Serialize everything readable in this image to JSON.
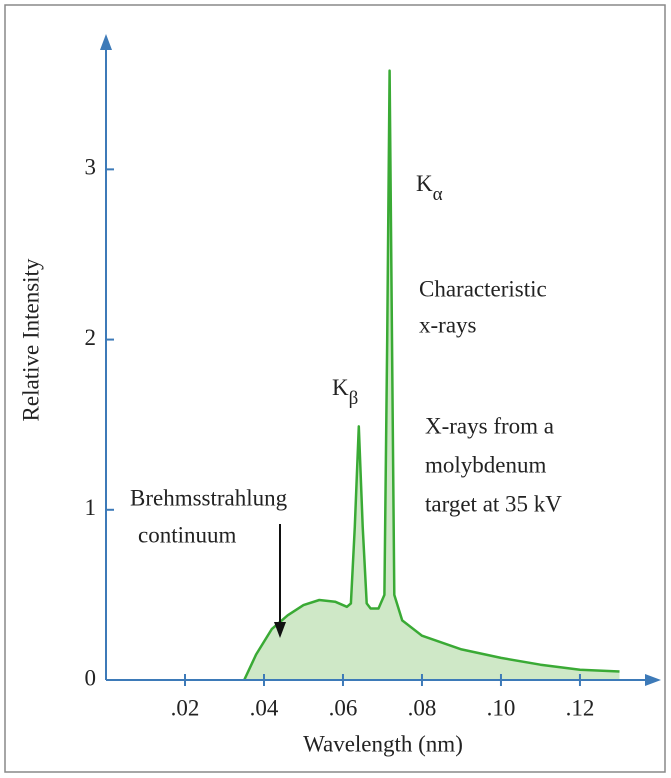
{
  "chart_data": {
    "type": "area",
    "x_label": "Wavelength (nm)",
    "y_label": "Relative Intensity",
    "x": [
      0.035,
      0.038,
      0.042,
      0.046,
      0.05,
      0.054,
      0.058,
      0.061,
      0.062,
      0.063,
      0.064,
      0.065,
      0.066,
      0.067,
      0.069,
      0.0705,
      0.0712,
      0.0718,
      0.0724,
      0.073,
      0.075,
      0.08,
      0.09,
      0.1,
      0.11,
      0.12,
      0.13
    ],
    "values": [
      0,
      0.15,
      0.3,
      0.38,
      0.44,
      0.47,
      0.46,
      0.43,
      0.45,
      0.9,
      1.49,
      0.9,
      0.45,
      0.42,
      0.42,
      0.5,
      2,
      3.58,
      2,
      0.5,
      0.35,
      0.26,
      0.18,
      0.13,
      0.09,
      0.06,
      0.05
    ],
    "color": "#3aaa35",
    "fill": "#cfe8c7",
    "axis_color": "#3d7ab8",
    "xlim": [
      0,
      0.139
    ],
    "ylim": [
      0,
      3.76
    ],
    "xticks": [
      {
        "value": 0.02,
        "label": ".02"
      },
      {
        "value": 0.04,
        "label": ".04"
      },
      {
        "value": 0.06,
        "label": ".06"
      },
      {
        "value": 0.08,
        "label": ".08"
      },
      {
        "value": 0.1,
        "label": ".10"
      },
      {
        "value": 0.12,
        "label": ".12"
      }
    ],
    "yticks": [
      0,
      1,
      2,
      3
    ],
    "annotations": [
      {
        "text": "K",
        "sub": "α"
      },
      {
        "text": "K",
        "sub": "β"
      },
      {
        "lines": [
          "Characteristic",
          "x-rays"
        ]
      },
      {
        "lines": [
          "X-rays from a",
          "molybdenum",
          "target at 35 kV"
        ]
      },
      {
        "lines": [
          "Brehmsstrahlung",
          "continuum"
        ]
      }
    ]
  }
}
